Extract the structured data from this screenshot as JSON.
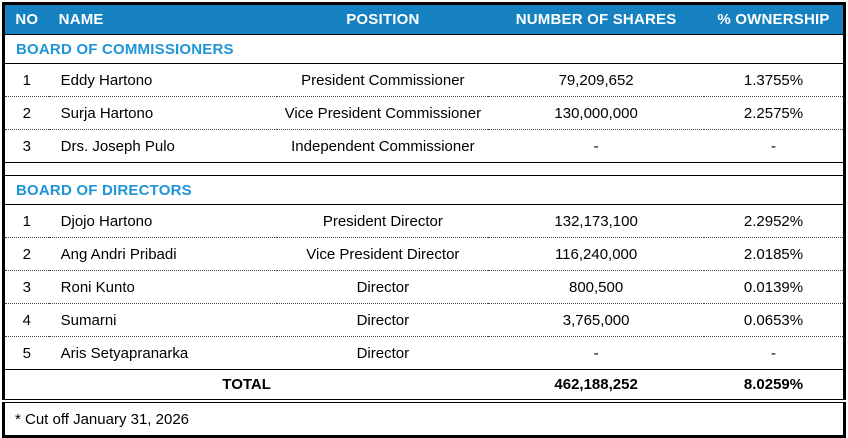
{
  "table": {
    "columns": [
      {
        "key": "no",
        "label": "NO"
      },
      {
        "key": "name",
        "label": "NAME"
      },
      {
        "key": "position",
        "label": "POSITION"
      },
      {
        "key": "shares",
        "label": "NUMBER OF SHARES"
      },
      {
        "key": "ownership",
        "label": "% OWNERSHIP"
      }
    ],
    "sections": [
      {
        "title": "BOARD OF COMMISSIONERS",
        "rows": [
          {
            "no": "1",
            "name": "Eddy Hartono",
            "position": "President Commissioner",
            "shares": "79,209,652",
            "ownership": "1.3755%"
          },
          {
            "no": "2",
            "name": "Surja Hartono",
            "position": "Vice President Commissioner",
            "shares": "130,000,000",
            "ownership": "2.2575%"
          },
          {
            "no": "3",
            "name": "Drs. Joseph Pulo",
            "position": "Independent Commissioner",
            "shares": "-",
            "ownership": "-"
          }
        ]
      },
      {
        "title": "BOARD OF DIRECTORS",
        "rows": [
          {
            "no": "1",
            "name": "Djojo Hartono",
            "position": "President Director",
            "shares": "132,173,100",
            "ownership": "2.2952%"
          },
          {
            "no": "2",
            "name": "Ang Andri Pribadi",
            "position": "Vice President Director",
            "shares": "116,240,000",
            "ownership": "2.0185%"
          },
          {
            "no": "3",
            "name": "Roni Kunto",
            "position": "Director",
            "shares": "800,500",
            "ownership": "0.0139%"
          },
          {
            "no": "4",
            "name": "Sumarni",
            "position": "Director",
            "shares": "3,765,000",
            "ownership": "0.0653%"
          },
          {
            "no": "5",
            "name": "Aris Setyapranarka",
            "position": "Director",
            "shares": "-",
            "ownership": "-"
          }
        ]
      }
    ],
    "total": {
      "label": "TOTAL",
      "shares": "462,188,252",
      "ownership": "8.0259%"
    },
    "footnote": "* Cut off January 31, 2026"
  },
  "colors": {
    "header_bg": "#1581C1",
    "header_fg": "#FFFFFF",
    "section_title": "#2095D6",
    "border": "#000000"
  }
}
